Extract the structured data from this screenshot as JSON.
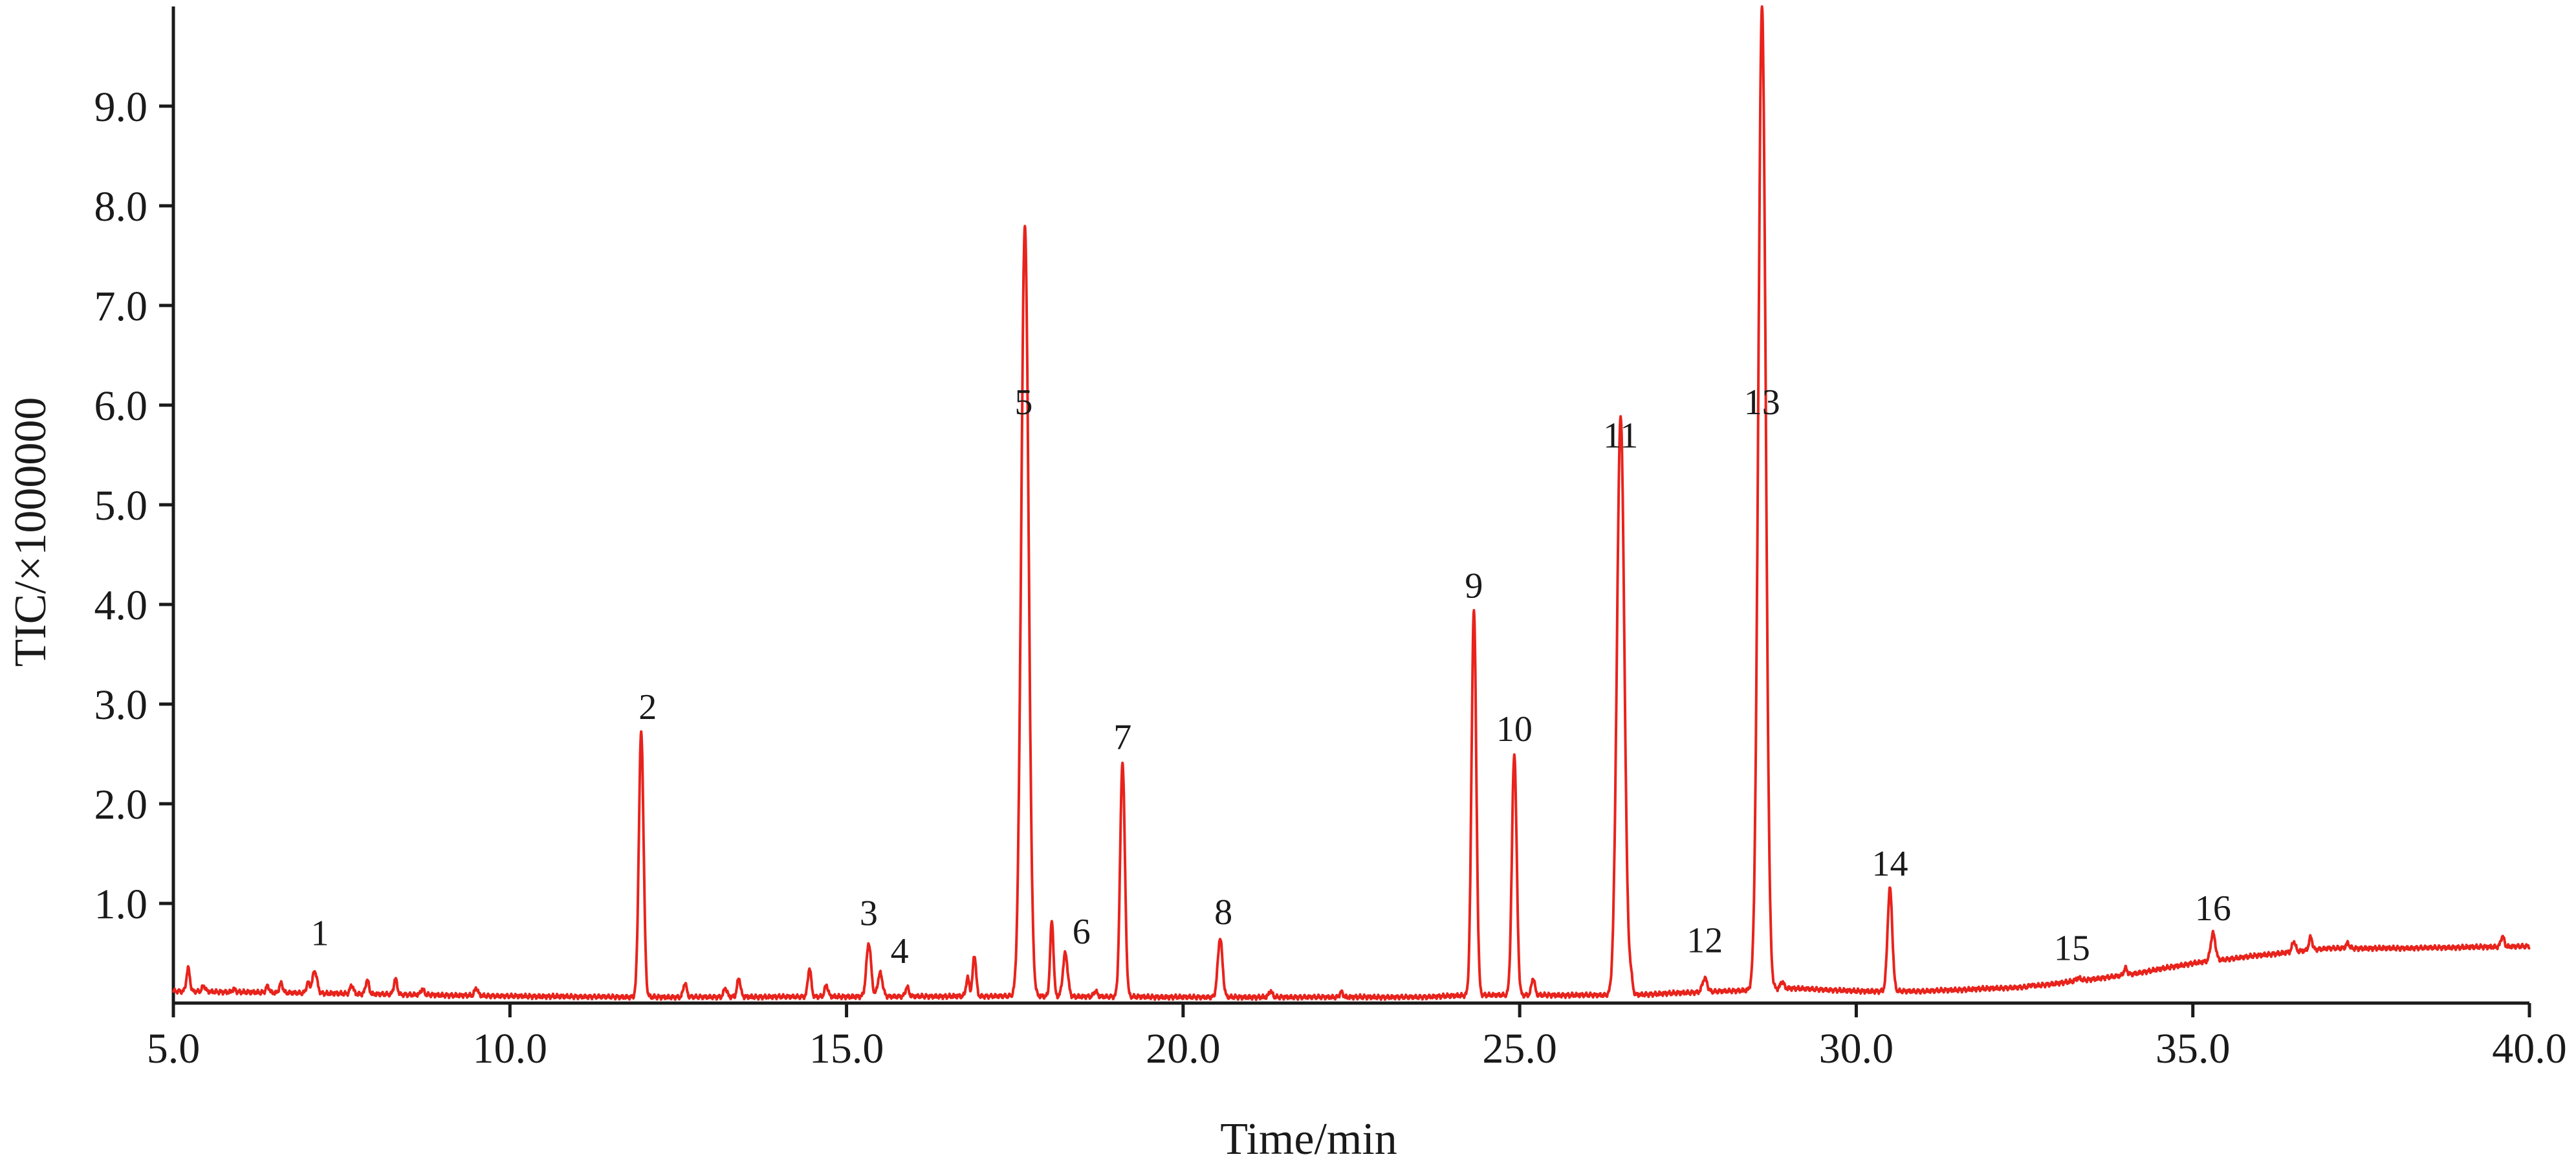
{
  "chart_data": {
    "type": "line",
    "title": "",
    "xlabel": "Time/min",
    "ylabel": "TIC/×1000000",
    "xlim": [
      5.0,
      40.0
    ],
    "ylim": [
      0.0,
      10.0
    ],
    "x_ticks": [
      "5.0",
      "10.0",
      "15.0",
      "20.0",
      "25.0",
      "30.0",
      "35.0",
      "40.0"
    ],
    "y_ticks": [
      "1.0",
      "2.0",
      "3.0",
      "4.0",
      "5.0",
      "6.0",
      "7.0",
      "8.0",
      "9.0"
    ],
    "color": "#e8231c",
    "grid": false,
    "legend": "none",
    "peaks": [
      {
        "label": "1",
        "x": 7.1,
        "y": 0.32
      },
      {
        "label": "2",
        "x": 11.95,
        "y": 2.72
      },
      {
        "label": "3",
        "x": 15.33,
        "y": 0.6
      },
      {
        "label": "4",
        "x": 15.5,
        "y": 0.3
      },
      {
        "label": "5",
        "x": 17.65,
        "y": 7.8
      },
      {
        "label": "6",
        "x": 18.25,
        "y": 0.5
      },
      {
        "label": "7",
        "x": 19.1,
        "y": 2.42
      },
      {
        "label": "8",
        "x": 20.55,
        "y": 0.65
      },
      {
        "label": "9",
        "x": 24.32,
        "y": 3.95
      },
      {
        "label": "10",
        "x": 24.92,
        "y": 2.5
      },
      {
        "label": "11",
        "x": 26.5,
        "y": 5.9
      },
      {
        "label": "12",
        "x": 27.75,
        "y": 0.25
      },
      {
        "label": "13",
        "x": 28.6,
        "y": 10.0
      },
      {
        "label": "14",
        "x": 30.5,
        "y": 1.15
      },
      {
        "label": "15",
        "x": 33.3,
        "y": 0.25
      },
      {
        "label": "16",
        "x": 35.3,
        "y": 0.7
      }
    ],
    "minor_peaks": [
      {
        "x": 5.22,
        "y": 0.35
      },
      {
        "x": 5.45,
        "y": 0.17
      },
      {
        "x": 5.9,
        "y": 0.14
      },
      {
        "x": 6.4,
        "y": 0.17
      },
      {
        "x": 6.6,
        "y": 0.2
      },
      {
        "x": 7.0,
        "y": 0.2
      },
      {
        "x": 7.65,
        "y": 0.18
      },
      {
        "x": 7.88,
        "y": 0.23
      },
      {
        "x": 8.3,
        "y": 0.24
      },
      {
        "x": 8.7,
        "y": 0.14
      },
      {
        "x": 9.5,
        "y": 0.15
      },
      {
        "x": 12.6,
        "y": 0.2
      },
      {
        "x": 13.2,
        "y": 0.15
      },
      {
        "x": 13.4,
        "y": 0.25
      },
      {
        "x": 14.45,
        "y": 0.35
      },
      {
        "x": 14.7,
        "y": 0.18
      },
      {
        "x": 15.9,
        "y": 0.16
      },
      {
        "x": 16.8,
        "y": 0.25
      },
      {
        "x": 16.9,
        "y": 0.48
      },
      {
        "x": 18.05,
        "y": 0.82
      },
      {
        "x": 18.7,
        "y": 0.12
      },
      {
        "x": 21.3,
        "y": 0.12
      },
      {
        "x": 22.35,
        "y": 0.11
      },
      {
        "x": 25.2,
        "y": 0.25
      },
      {
        "x": 26.65,
        "y": 0.25
      },
      {
        "x": 28.9,
        "y": 0.22
      },
      {
        "x": 30.1,
        "y": 0.12
      },
      {
        "x": 32.6,
        "y": 0.18
      },
      {
        "x": 34.0,
        "y": 0.35
      },
      {
        "x": 36.5,
        "y": 0.62
      },
      {
        "x": 36.75,
        "y": 0.66
      },
      {
        "x": 37.3,
        "y": 0.6
      },
      {
        "x": 39.6,
        "y": 0.67
      }
    ],
    "baseline": [
      {
        "x": 5.0,
        "y": 0.12
      },
      {
        "x": 10.0,
        "y": 0.07
      },
      {
        "x": 12.0,
        "y": 0.06
      },
      {
        "x": 17.5,
        "y": 0.07
      },
      {
        "x": 20.0,
        "y": 0.06
      },
      {
        "x": 23.5,
        "y": 0.06
      },
      {
        "x": 24.3,
        "y": 0.08
      },
      {
        "x": 26.6,
        "y": 0.08
      },
      {
        "x": 28.4,
        "y": 0.13
      },
      {
        "x": 29.0,
        "y": 0.15
      },
      {
        "x": 30.0,
        "y": 0.12
      },
      {
        "x": 31.0,
        "y": 0.12
      },
      {
        "x": 32.5,
        "y": 0.16
      },
      {
        "x": 34.0,
        "y": 0.28
      },
      {
        "x": 35.0,
        "y": 0.4
      },
      {
        "x": 36.0,
        "y": 0.48
      },
      {
        "x": 37.0,
        "y": 0.55
      },
      {
        "x": 38.0,
        "y": 0.55
      },
      {
        "x": 40.0,
        "y": 0.57
      }
    ]
  }
}
